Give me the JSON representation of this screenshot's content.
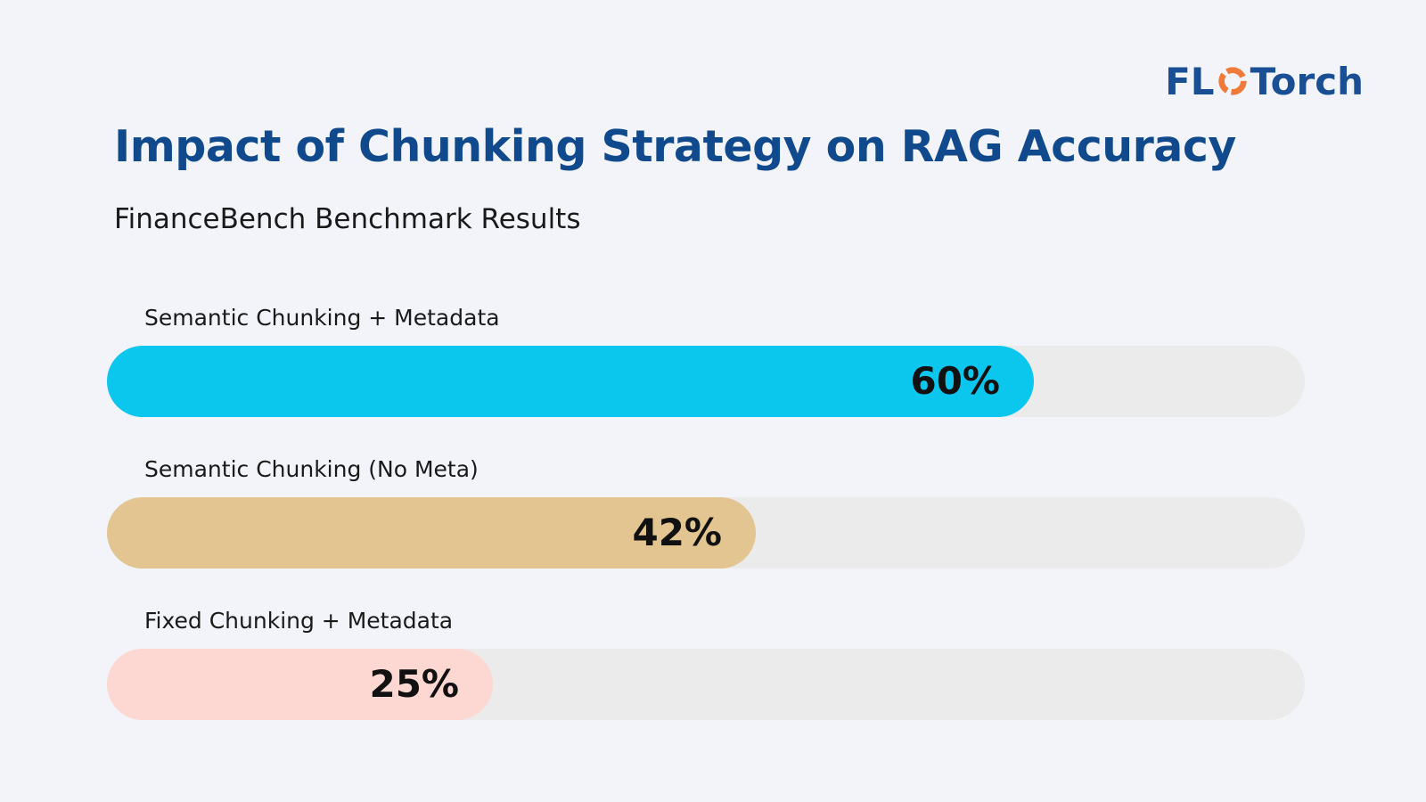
{
  "logo": {
    "left_text": "FL",
    "right_text": "Torch",
    "ring_name": "flame-ring-icon",
    "text_color": "#1b4f93",
    "ring_color": "#f07a3a"
  },
  "chart_data": {
    "type": "bar",
    "orientation": "horizontal",
    "title": "Impact of Chunking Strategy on RAG Accuracy",
    "subtitle": "FinanceBench Benchmark Results",
    "xlim": [
      0,
      100
    ],
    "unit": "%",
    "categories": [
      "Semantic Chunking + Metadata",
      "Semantic Chunking (No Meta)",
      "Fixed Chunking + Metadata"
    ],
    "values": [
      60,
      42,
      25
    ],
    "value_labels": [
      "60%",
      "42%",
      "25%"
    ],
    "colors": [
      "#0bc6ed",
      "#e2c590",
      "#fdd8d2"
    ],
    "track_color": "#ebebeb",
    "legend": "none",
    "grid": false
  }
}
